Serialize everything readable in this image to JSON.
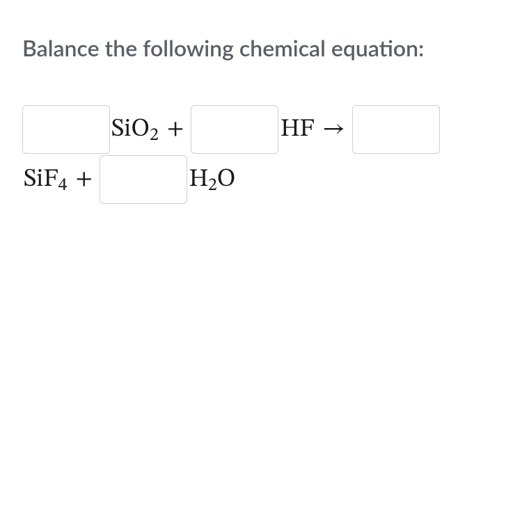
{
  "prompt": "Balance the following chemical equation:",
  "equation": {
    "reactants": [
      {
        "element": "Si",
        "sub1": "",
        "element2": "O",
        "sub2": "2"
      },
      {
        "element": "H",
        "sub1": "",
        "element2": "F",
        "sub2": ""
      }
    ],
    "products": [
      {
        "element": "Si",
        "sub1": "",
        "element2": "F",
        "sub2": "4"
      },
      {
        "element": "H",
        "sub1": "2",
        "element2": "O",
        "sub2": ""
      }
    ],
    "plus": "+",
    "arrow": "→"
  },
  "coefficients": {
    "c1": "",
    "c2": "",
    "c3": "",
    "c4": ""
  },
  "style": {
    "prompt_color": "#5a5f66",
    "text_color": "#1a1a1a",
    "input_border": "#cfcfcf",
    "background": "#ffffff",
    "prompt_fontsize": 32,
    "equation_fontsize": 36,
    "input_width": 126,
    "input_height": 70
  }
}
